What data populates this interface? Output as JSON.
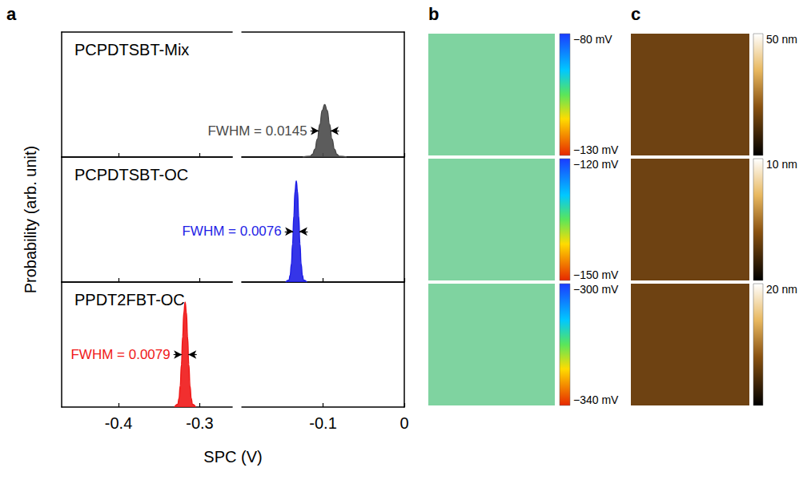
{
  "chart_data": [
    {
      "type": "area",
      "panel_label": "a",
      "x_label": "SPC (V)",
      "y_label": "Probability (arb. unit)",
      "xlim": [
        -0.47,
        0
      ],
      "axis_break": [
        -0.26,
        -0.2
      ],
      "xticks": [
        -0.4,
        -0.3,
        -0.1,
        0
      ],
      "ylim": [
        0,
        1
      ],
      "tick_labels": "x",
      "series": [
        {
          "name": "PCPDTSBT-Mix",
          "color": "#4a4a4a",
          "fwhm": 0.0145,
          "annotation": "FWHM = 0.0145",
          "x": [
            -0.125,
            -0.116,
            -0.113,
            -0.11,
            -0.107,
            -0.104,
            -0.101,
            -0.098,
            -0.095,
            -0.092,
            -0.089,
            -0.086,
            -0.083,
            -0.08,
            -0.071
          ],
          "values": [
            0,
            0.006,
            0.022,
            0.063,
            0.144,
            0.261,
            0.373,
            0.42,
            0.373,
            0.261,
            0.144,
            0.063,
            0.022,
            0.006,
            0
          ]
        },
        {
          "name": "PCPDTSBT-OC",
          "color": "#1f1fe6",
          "fwhm": 0.0076,
          "annotation": "FWHM = 0.0076",
          "x": [
            -0.146,
            -0.142,
            -0.1405,
            -0.139,
            -0.1375,
            -0.136,
            -0.1345,
            -0.133,
            -0.1315,
            -0.13,
            -0.1285,
            -0.127,
            -0.1255,
            -0.124,
            -0.12
          ],
          "values": [
            0,
            0.016,
            0.054,
            0.144,
            0.306,
            0.526,
            0.727,
            0.81,
            0.727,
            0.526,
            0.306,
            0.144,
            0.054,
            0.016,
            0
          ]
        },
        {
          "name": "PPDT2FBT-OC",
          "color": "#f01818",
          "fwhm": 0.0079,
          "annotation": "FWHM = 0.0079",
          "x": [
            -0.331,
            -0.327,
            -0.3255,
            -0.324,
            -0.3225,
            -0.321,
            -0.3195,
            -0.318,
            -0.3165,
            -0.315,
            -0.3135,
            -0.312,
            -0.3105,
            -0.309,
            -0.305
          ],
          "values": [
            0,
            0.023,
            0.069,
            0.17,
            0.342,
            0.563,
            0.76,
            0.84,
            0.76,
            0.563,
            0.342,
            0.17,
            0.069,
            0.023,
            0
          ]
        }
      ]
    },
    {
      "type": "heatmap",
      "panel_label": "b",
      "maps": [
        {
          "colorbar": {
            "range": [
              -130,
              -80
            ],
            "ticks": [
              {
                "value": -130,
                "label": "−130 mV"
              },
              {
                "value": -80,
                "label": "−80 mV"
              }
            ]
          }
        },
        {
          "colorbar": {
            "range": [
              -150,
              -120
            ],
            "ticks": [
              {
                "value": -150,
                "label": "−150 mV"
              },
              {
                "value": -120,
                "label": "−120 mV"
              }
            ]
          }
        },
        {
          "colorbar": {
            "range": [
              -340,
              -300
            ],
            "ticks": [
              {
                "value": -340,
                "label": "−340 mV"
              },
              {
                "value": -300,
                "label": "−300 mV"
              }
            ]
          }
        }
      ]
    },
    {
      "type": "heatmap",
      "panel_label": "c",
      "maps": [
        {
          "colorbar": {
            "range": [
              0,
              50
            ],
            "ticks": [
              {
                "value": 50,
                "label": "50 nm"
              }
            ]
          }
        },
        {
          "colorbar": {
            "range": [
              0,
              10
            ],
            "ticks": [
              {
                "value": 10,
                "label": "10 nm"
              }
            ]
          }
        },
        {
          "colorbar": {
            "range": [
              0,
              20
            ],
            "ticks": [
              {
                "value": 20,
                "label": "20 nm"
              }
            ]
          }
        }
      ]
    }
  ]
}
